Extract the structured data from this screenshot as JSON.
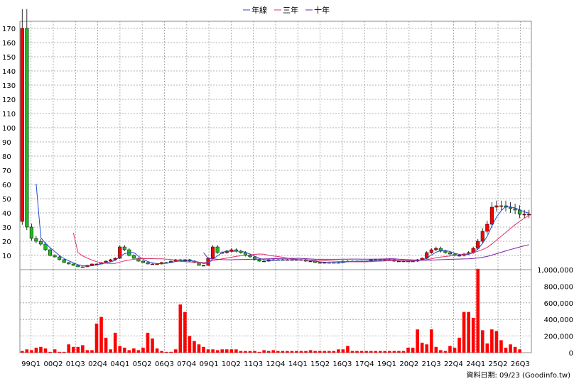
{
  "legend": [
    {
      "name": "年線",
      "color": "#1f4fd1"
    },
    {
      "name": "三年",
      "color": "#e0306a"
    },
    {
      "name": "十年",
      "color": "#7a1fa6"
    }
  ],
  "credit": "資料日期: 09/23 (Goodinfo.tw)",
  "colors": {
    "up": "#ff0000",
    "down": "#22bb22",
    "volume": "#ff0000",
    "grid": "#999999"
  },
  "chart_data": [
    {
      "type": "candlestick",
      "ylim": [
        0,
        175
      ],
      "yticks": [
        "10",
        "20",
        "30",
        "40",
        "50",
        "60",
        "70",
        "80",
        "90",
        "100",
        "110",
        "120",
        "130",
        "140",
        "150",
        "160",
        "170"
      ],
      "x_tick_labels": [
        "99Q1",
        "00Q2",
        "01Q3",
        "02Q4",
        "04Q1",
        "05Q2",
        "06Q3",
        "07Q4",
        "09Q1",
        "10Q2",
        "11Q3",
        "12Q4",
        "14Q1",
        "15Q2",
        "16Q3",
        "17Q4",
        "19Q1",
        "20Q2",
        "21Q3",
        "22Q4",
        "24Q1",
        "25Q2",
        "26Q3"
      ],
      "grid": true,
      "legend_position": "top-center",
      "quarterly_close_approx": [
        170,
        30,
        22,
        20,
        18,
        14,
        10,
        9,
        7,
        5,
        4,
        3,
        2,
        2,
        3,
        4,
        4,
        5,
        6,
        7,
        8,
        16,
        14,
        10,
        8,
        6,
        5,
        4,
        4,
        4,
        5,
        5,
        6,
        7,
        6,
        7,
        6,
        5,
        3,
        3,
        8,
        16,
        12,
        12,
        13,
        14,
        13,
        12,
        10,
        9,
        7,
        6,
        6,
        7,
        7,
        7,
        7,
        7,
        7,
        7,
        7,
        6,
        6,
        5,
        5,
        5,
        5,
        5,
        5,
        6,
        6,
        6,
        6,
        6,
        6,
        7,
        7,
        7,
        7,
        7,
        6,
        6,
        6,
        6,
        6,
        7,
        8,
        12,
        14,
        15,
        13,
        12,
        11,
        10,
        10,
        11,
        12,
        15,
        20,
        27,
        32,
        44,
        45,
        45,
        44,
        43,
        42,
        39,
        39,
        39
      ]
    },
    {
      "type": "bar",
      "series": [
        {
          "values_approx": [
            20,
            40,
            30,
            60,
            70,
            50,
            10,
            40,
            10,
            10,
            100,
            70,
            70,
            90,
            30,
            30,
            350,
            430,
            180,
            40,
            240,
            80,
            60,
            30,
            50,
            30,
            60,
            240,
            170,
            50,
            20,
            10,
            10,
            40,
            580,
            490,
            200,
            140,
            100,
            70,
            40,
            40,
            30,
            40,
            40,
            40,
            40,
            20,
            20,
            20,
            20,
            10,
            30,
            20,
            30,
            20,
            20,
            20,
            20,
            20,
            20,
            20,
            30,
            20,
            20,
            20,
            20,
            20,
            40,
            40,
            80,
            20,
            20,
            20,
            20,
            20,
            20,
            20,
            20,
            20,
            20,
            20,
            20,
            60,
            60,
            280,
            120,
            100,
            280,
            70,
            30,
            20,
            80,
            60,
            180,
            490,
            490,
            420,
            1010,
            270,
            110,
            280,
            260,
            150,
            60,
            100,
            70,
            40
          ]
        }
      ],
      "ylim": [
        0,
        1000000
      ],
      "yticks": [
        "0",
        "200,000",
        "400,000",
        "600,000",
        "800,000",
        "1,000,000"
      ]
    }
  ]
}
